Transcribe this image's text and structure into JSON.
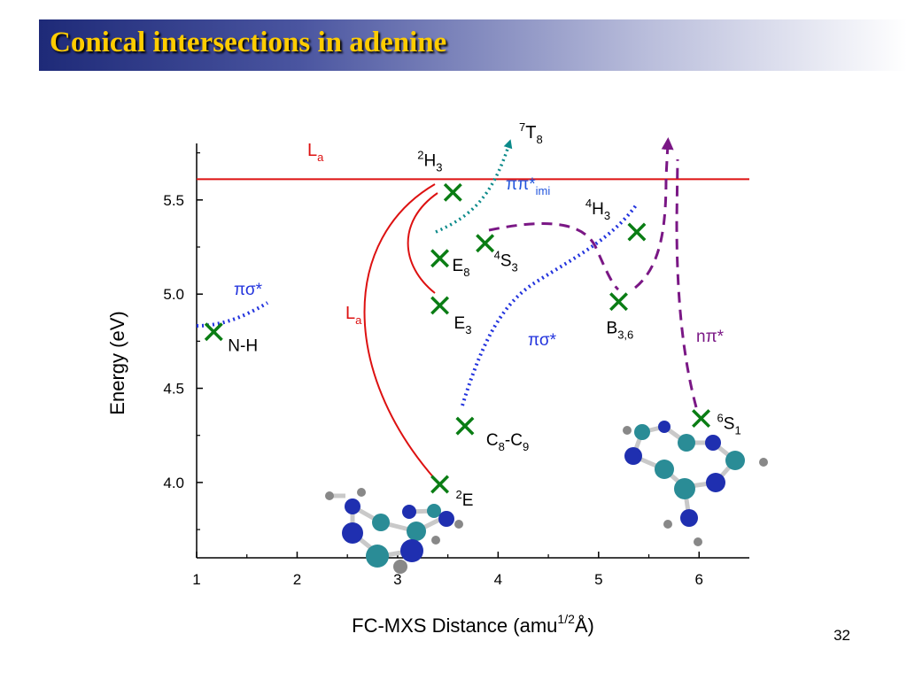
{
  "slide": {
    "title": "Conical intersections in adenine",
    "number": "32"
  },
  "chart_data": {
    "type": "scatter",
    "xlabel": "FC-MXS Distance (amu",
    "xlabel_sup": "1/2",
    "xlabel_tail": "Å)",
    "ylabel": "Energy (eV)",
    "xlim": [
      1.0,
      6.5
    ],
    "ylim": [
      3.6,
      5.8
    ],
    "xticks": [
      1,
      2,
      3,
      4,
      5,
      6
    ],
    "yticks": [
      4.0,
      4.5,
      5.0,
      5.5
    ],
    "ytick_labels": [
      "4.0",
      "4.5",
      "5.0",
      "5.5"
    ],
    "La_level": 5.61,
    "colors": {
      "marker": "#0a7d14",
      "La": "#dd1111",
      "pisigma": "#2233dd",
      "pipi_imi": "#0b8a8a",
      "npi": "#7a1785"
    },
    "points": [
      {
        "x": 1.17,
        "y": 4.8,
        "label": "N-H"
      },
      {
        "x": 3.42,
        "y": 3.99,
        "label": "E",
        "pre": "2"
      },
      {
        "x": 3.67,
        "y": 4.3,
        "label": "C",
        "sub": "8",
        "mid": "-C",
        "sub2": "9"
      },
      {
        "x": 3.42,
        "y": 4.94,
        "label": "E",
        "sub": "3"
      },
      {
        "x": 3.42,
        "y": 5.19,
        "label": "E",
        "sub": "8"
      },
      {
        "x": 3.55,
        "y": 5.54,
        "label": "H",
        "pre": "2",
        "sub": "3"
      },
      {
        "x": 3.87,
        "y": 5.27,
        "label": "S",
        "pre": "4",
        "sub": "3"
      },
      {
        "x": 5.2,
        "y": 4.96,
        "label": "B",
        "sub": "3,6"
      },
      {
        "x": 5.38,
        "y": 5.33,
        "label": "H",
        "pre": "4",
        "sub": "3"
      },
      {
        "x": 6.02,
        "y": 4.34,
        "label": "S",
        "pre": "6",
        "sub": "1"
      }
    ],
    "labels": {
      "La_top": "L",
      "La_top_sub": "a",
      "La_mid": "L",
      "La_mid_sub": "a",
      "pisigma_left": "πσ*",
      "pisigma_mid": "πσ*",
      "pipi_imi": "ππ*",
      "pipi_imi_sub": "imi",
      "npi": "nπ*",
      "T8": "T",
      "T8_pre": "7",
      "T8_sub": "8"
    }
  }
}
